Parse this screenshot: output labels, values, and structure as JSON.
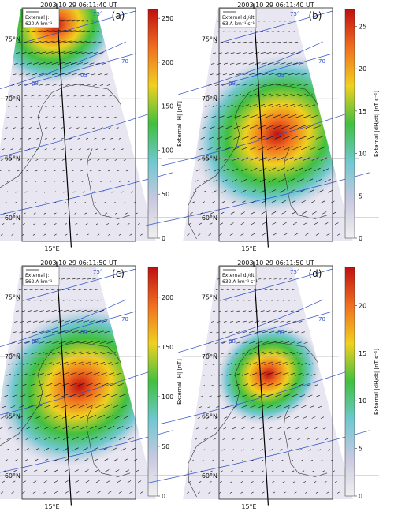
{
  "chart_data": [
    {
      "type": "map",
      "panel_label": "(a)",
      "timestamp": "2003 10 29 06:11:40 UT",
      "quantity": "External J:",
      "scale_value": "620 A km⁻¹",
      "colorbar_label": "External |H| [nT]",
      "colorbar_ticks": [
        0,
        50,
        100,
        150,
        200,
        250
      ],
      "colorbar_max": 260,
      "hotspot": {
        "lat": 76.2,
        "lon": 16.5,
        "radius_deg": 3.0
      },
      "latitude_labels": [
        "60°N",
        "65°N",
        "70°N",
        "75°N"
      ],
      "longitude_label": "15°E",
      "mlat_labels": [
        "75°",
        "70"
      ],
      "mlt_labels": [
        "08",
        "09"
      ]
    },
    {
      "type": "map",
      "panel_label": "(b)",
      "timestamp": "2003 10 29 06:11:40 UT",
      "quantity": "External dJ/dt:",
      "scale_value": "63 A km⁻¹ s⁻¹",
      "colorbar_label": "External |dH/dt| [nT s⁻¹]",
      "colorbar_ticks": [
        0,
        5,
        10,
        15,
        20,
        25
      ],
      "colorbar_max": 27,
      "hotspot": {
        "lat": 67.0,
        "lon": 20.5,
        "radius_deg": 4.0
      },
      "latitude_labels": [
        "60°N",
        "65°N",
        "70°N",
        "75°N"
      ],
      "longitude_label": "15°E",
      "mlat_labels": [
        "75°",
        "70"
      ],
      "mlt_labels": [
        "08",
        "09"
      ]
    },
    {
      "type": "map",
      "panel_label": "(c)",
      "timestamp": "2003 10 29 06:11:50 UT",
      "quantity": "External J:",
      "scale_value": "562 A km⁻¹",
      "colorbar_label": "External |H| [nT]",
      "colorbar_ticks": [
        0,
        50,
        100,
        150,
        200
      ],
      "colorbar_max": 230,
      "hotspot": {
        "lat": 67.5,
        "lon": 20.5,
        "radius_deg": 4.0
      },
      "latitude_labels": [
        "60°N",
        "65°N",
        "70°N",
        "75°N"
      ],
      "longitude_label": "15°E",
      "mlat_labels": [
        "75°",
        "70"
      ],
      "mlt_labels": [
        "08",
        "09"
      ]
    },
    {
      "type": "map",
      "panel_label": "(d)",
      "timestamp": "2003 10 29 06:11:50 UT",
      "quantity": "External dJ/dt:",
      "scale_value": "632 A km⁻¹ s⁻¹",
      "colorbar_label": "External |dH/dt| [nT s⁻¹]",
      "colorbar_ticks": [
        0,
        5,
        10,
        15,
        20
      ],
      "colorbar_max": 24,
      "hotspot": {
        "lat": 68.5,
        "lon": 19.0,
        "radius_deg": 2.5
      },
      "latitude_labels": [
        "60°N",
        "65°N",
        "70°N",
        "75°N"
      ],
      "longitude_label": "15°E",
      "mlat_labels": [
        "75°",
        "70"
      ],
      "mlt_labels": [
        "08",
        "09"
      ]
    }
  ],
  "colors": {
    "background": "#ffffff",
    "coastline": "#333333",
    "contour": "#3050c8",
    "meridian": "#000000",
    "colormap": [
      "#f0f0f0",
      "#c8c8e0",
      "#70c8d0",
      "#40c040",
      "#f0d020",
      "#f07020",
      "#c01010"
    ]
  }
}
